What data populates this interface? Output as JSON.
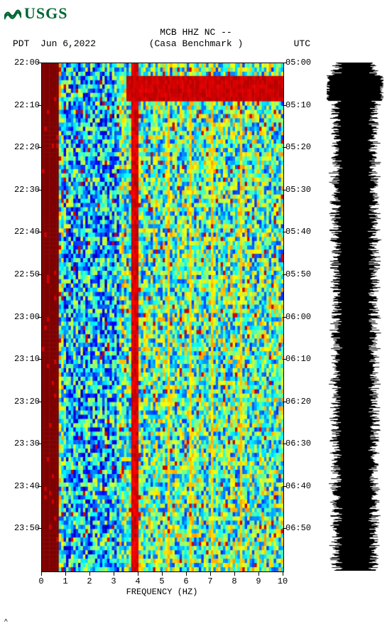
{
  "logo": {
    "text": "USGS",
    "color": "#006633"
  },
  "header": {
    "line1": "MCB HHZ NC --",
    "tz_left_label": "PDT",
    "date": "Jun 6,2022",
    "station": "(Casa Benchmark )",
    "tz_right_label": "UTC"
  },
  "spectrogram": {
    "type": "spectrogram",
    "x_axis": {
      "label": "FREQUENCY (HZ)",
      "min": 0,
      "max": 10,
      "ticks": [
        0,
        1,
        2,
        3,
        4,
        5,
        6,
        7,
        8,
        9,
        10
      ]
    },
    "y_axis_left": {
      "ticks": [
        "22:00",
        "22:10",
        "22:20",
        "22:30",
        "22:40",
        "22:50",
        "23:00",
        "23:10",
        "23:20",
        "23:30",
        "23:40",
        "23:50"
      ]
    },
    "y_axis_right": {
      "ticks": [
        "05:00",
        "05:10",
        "05:20",
        "05:30",
        "05:40",
        "05:50",
        "06:00",
        "06:10",
        "06:20",
        "06:30",
        "06:40",
        "06:50"
      ]
    },
    "time_rows": 120,
    "freq_cols": 100,
    "colormap": [
      "#00007f",
      "#0000ff",
      "#007fff",
      "#00ffff",
      "#7fff7f",
      "#ffff00",
      "#ff7f00",
      "#ff0000",
      "#7f0000"
    ],
    "background_color": "#ffffff",
    "features": {
      "left_edge_band": {
        "freq_start": 0,
        "freq_end": 0.6,
        "intensity": 1.0
      },
      "vertical_line": {
        "freq": 3.8,
        "intensity": 0.95
      },
      "top_hot_band": {
        "time_row_start": 3,
        "time_row_end": 8,
        "freq_start": 3.5,
        "freq_end": 10,
        "intensity": 0.95
      },
      "base_level": 0.45,
      "noise_amplitude": 0.28
    }
  },
  "trace": {
    "color": "#000000",
    "background": "#ffffff",
    "samples": 715,
    "base_amplitude": 0.72,
    "burst_rows": [
      3,
      4,
      5,
      6,
      7,
      8
    ]
  },
  "footer_mark": "^"
}
